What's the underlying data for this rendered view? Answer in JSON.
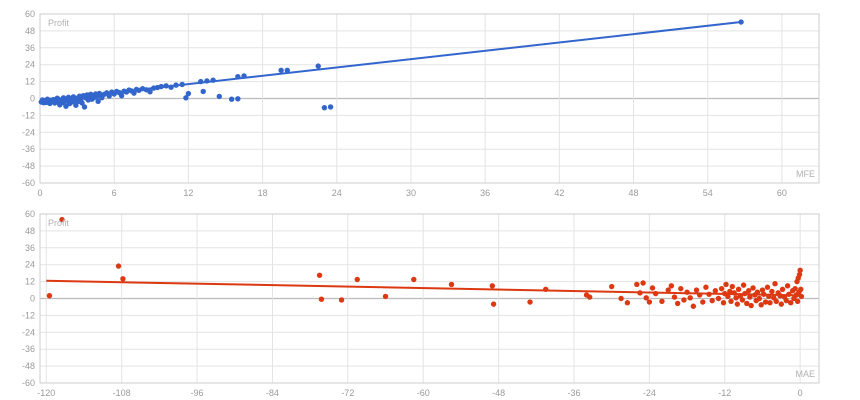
{
  "chart_data": [
    {
      "type": "scatter",
      "ylabel": "Profit",
      "xlabel": "MFE",
      "xlim": [
        0,
        63
      ],
      "ylim": [
        -60,
        60
      ],
      "xticks": [
        "0",
        "6",
        "12",
        "18",
        "24",
        "30",
        "36",
        "42",
        "48",
        "54",
        "60"
      ],
      "yticks": [
        "60",
        "48",
        "36",
        "24",
        "12",
        "0",
        "-12",
        "-24",
        "-36",
        "-48",
        "-60"
      ],
      "grid": true,
      "color": "#3366cc",
      "trendline": {
        "x": [
          0,
          56.7
        ],
        "y": [
          -1.6,
          54.3
        ]
      },
      "points": [
        [
          0.1,
          -2.5
        ],
        [
          0.2,
          -1.0
        ],
        [
          0.3,
          -3.0
        ],
        [
          0.4,
          -1.5
        ],
        [
          0.5,
          -2.8
        ],
        [
          0.6,
          -0.5
        ],
        [
          0.7,
          -2.0
        ],
        [
          0.8,
          -3.5
        ],
        [
          0.9,
          -1.2
        ],
        [
          1.0,
          -2.2
        ],
        [
          1.1,
          -0.8
        ],
        [
          1.2,
          -3.2
        ],
        [
          1.3,
          -1.8
        ],
        [
          1.4,
          0.2
        ],
        [
          1.5,
          -2.6
        ],
        [
          1.6,
          -4.5
        ],
        [
          1.7,
          -1.0
        ],
        [
          1.8,
          -3.0
        ],
        [
          1.9,
          0.5
        ],
        [
          2.0,
          -2.0
        ],
        [
          2.1,
          -5.5
        ],
        [
          2.2,
          -1.5
        ],
        [
          2.3,
          0.8
        ],
        [
          2.4,
          -3.6
        ],
        [
          2.5,
          -0.5
        ],
        [
          2.6,
          -2.4
        ],
        [
          2.7,
          1.2
        ],
        [
          2.8,
          -1.2
        ],
        [
          2.9,
          -4.8
        ],
        [
          3.0,
          0.0
        ],
        [
          3.1,
          -2.0
        ],
        [
          3.2,
          1.6
        ],
        [
          3.3,
          -0.8
        ],
        [
          3.4,
          -3.2
        ],
        [
          3.5,
          2.0
        ],
        [
          3.6,
          -6.0
        ],
        [
          3.7,
          0.5
        ],
        [
          3.8,
          2.5
        ],
        [
          3.9,
          -1.0
        ],
        [
          4.0,
          1.0
        ],
        [
          4.1,
          3.0
        ],
        [
          4.2,
          -0.5
        ],
        [
          4.3,
          2.0
        ],
        [
          4.4,
          0.8
        ],
        [
          4.5,
          3.2
        ],
        [
          4.6,
          1.5
        ],
        [
          4.7,
          -2.0
        ],
        [
          4.8,
          3.6
        ],
        [
          4.9,
          2.2
        ],
        [
          5.0,
          0.6
        ],
        [
          5.2,
          3.0
        ],
        [
          5.4,
          4.0
        ],
        [
          5.6,
          1.8
        ],
        [
          5.8,
          4.6
        ],
        [
          6.0,
          3.2
        ],
        [
          6.2,
          5.0
        ],
        [
          6.4,
          4.2
        ],
        [
          6.6,
          2.0
        ],
        [
          6.8,
          5.2
        ],
        [
          7.0,
          4.6
        ],
        [
          7.2,
          6.0
        ],
        [
          7.4,
          5.4
        ],
        [
          7.6,
          3.8
        ],
        [
          7.8,
          6.4
        ],
        [
          8.0,
          5.8
        ],
        [
          8.3,
          7.0
        ],
        [
          8.6,
          6.2
        ],
        [
          8.9,
          4.8
        ],
        [
          9.2,
          7.4
        ],
        [
          9.5,
          7.8
        ],
        [
          9.8,
          8.5
        ],
        [
          10.2,
          9.0
        ],
        [
          10.6,
          8.0
        ],
        [
          11.0,
          9.5
        ],
        [
          11.5,
          10.0
        ],
        [
          12.0,
          3.5
        ],
        [
          11.8,
          0.5
        ],
        [
          13.0,
          12.0
        ],
        [
          13.5,
          12.5
        ],
        [
          13.2,
          5.0
        ],
        [
          14.0,
          13.0
        ],
        [
          14.5,
          1.5
        ],
        [
          15.5,
          -0.5
        ],
        [
          16.0,
          -0.2
        ],
        [
          16.0,
          15.5
        ],
        [
          16.5,
          16.0
        ],
        [
          19.5,
          20.0
        ],
        [
          20.0,
          20.0
        ],
        [
          22.5,
          23.0
        ],
        [
          23.0,
          -6.5
        ],
        [
          23.5,
          -6.0
        ],
        [
          56.7,
          54.3
        ]
      ]
    },
    {
      "type": "scatter",
      "ylabel": "Profit",
      "xlabel": "MAE",
      "xlim": [
        -121,
        3
      ],
      "ylim": [
        -60,
        60
      ],
      "xticks": [
        "-120",
        "-108",
        "-96",
        "-84",
        "-72",
        "-60",
        "-48",
        "-36",
        "-24",
        "-12",
        "0"
      ],
      "yticks": [
        "60",
        "48",
        "36",
        "24",
        "12",
        "0",
        "-12",
        "-24",
        "-36",
        "-48",
        "-60"
      ],
      "grid": true,
      "color": "#dc3912",
      "trendline": {
        "x": [
          -120,
          0
        ],
        "y": [
          12.6,
          2.2
        ]
      },
      "points": [
        [
          -117.5,
          56.0
        ],
        [
          -119.5,
          2.0
        ],
        [
          -108.5,
          23.0
        ],
        [
          -107.8,
          14.0
        ],
        [
          -76.5,
          16.5
        ],
        [
          -76.2,
          -0.5
        ],
        [
          -73.0,
          -1.0
        ],
        [
          -70.5,
          13.5
        ],
        [
          -66.0,
          1.5
        ],
        [
          -61.5,
          13.5
        ],
        [
          -55.5,
          10.0
        ],
        [
          -49.0,
          9.0
        ],
        [
          -48.8,
          -4.0
        ],
        [
          -43.0,
          -2.5
        ],
        [
          -40.5,
          6.5
        ],
        [
          -34.0,
          2.5
        ],
        [
          -33.5,
          1.0
        ],
        [
          -30.0,
          8.5
        ],
        [
          -28.5,
          0.0
        ],
        [
          -27.5,
          -3.0
        ],
        [
          -26.0,
          10.0
        ],
        [
          -25.5,
          4.0
        ],
        [
          -25.0,
          11.0
        ],
        [
          -24.5,
          0.5
        ],
        [
          -24.0,
          -2.5
        ],
        [
          -23.5,
          7.5
        ],
        [
          -23.0,
          3.5
        ],
        [
          -22.0,
          -2.0
        ],
        [
          -21.0,
          6.0
        ],
        [
          -20.5,
          9.0
        ],
        [
          -20.0,
          1.0
        ],
        [
          -19.5,
          -3.5
        ],
        [
          -19.0,
          7.0
        ],
        [
          -18.5,
          -1.0
        ],
        [
          -18.0,
          4.5
        ],
        [
          -17.5,
          0.5
        ],
        [
          -17.0,
          -5.5
        ],
        [
          -16.5,
          6.0
        ],
        [
          -16.0,
          2.5
        ],
        [
          -15.5,
          -2.5
        ],
        [
          -15.0,
          8.0
        ],
        [
          -14.5,
          3.0
        ],
        [
          -14.0,
          -1.5
        ],
        [
          -13.5,
          5.5
        ],
        [
          -13.0,
          0.0
        ],
        [
          -12.5,
          7.0
        ],
        [
          -12.2,
          -3.0
        ],
        [
          -12.0,
          3.5
        ],
        [
          -11.8,
          10.0
        ],
        [
          -11.5,
          1.5
        ],
        [
          -11.2,
          5.0
        ],
        [
          -11.0,
          -2.0
        ],
        [
          -10.8,
          8.5
        ],
        [
          -10.5,
          4.0
        ],
        [
          -10.2,
          0.5
        ],
        [
          -10.0,
          -4.0
        ],
        [
          -9.8,
          6.5
        ],
        [
          -9.5,
          2.0
        ],
        [
          -9.2,
          -1.0
        ],
        [
          -9.0,
          9.5
        ],
        [
          -8.8,
          3.5
        ],
        [
          -8.5,
          -3.5
        ],
        [
          -8.2,
          5.5
        ],
        [
          -8.0,
          1.0
        ],
        [
          -7.8,
          -5.0
        ],
        [
          -7.5,
          7.5
        ],
        [
          -7.2,
          2.5
        ],
        [
          -7.0,
          -1.5
        ],
        [
          -6.8,
          4.5
        ],
        [
          -6.5,
          0.0
        ],
        [
          -6.2,
          -4.5
        ],
        [
          -6.0,
          6.0
        ],
        [
          -5.8,
          3.0
        ],
        [
          -5.5,
          -2.5
        ],
        [
          -5.2,
          8.0
        ],
        [
          -5.0,
          1.5
        ],
        [
          -4.8,
          -3.0
        ],
        [
          -4.5,
          5.0
        ],
        [
          -4.2,
          0.5
        ],
        [
          -4.0,
          10.5
        ],
        [
          -3.8,
          -2.0
        ],
        [
          -3.5,
          4.0
        ],
        [
          -3.2,
          2.0
        ],
        [
          -3.0,
          -4.0
        ],
        [
          -2.8,
          6.5
        ],
        [
          -2.5,
          1.0
        ],
        [
          -2.2,
          -1.5
        ],
        [
          -2.0,
          9.0
        ],
        [
          -1.8,
          3.0
        ],
        [
          -1.5,
          -3.0
        ],
        [
          -1.2,
          5.5
        ],
        [
          -1.0,
          0.0
        ],
        [
          -0.8,
          7.0
        ],
        [
          -0.6,
          2.5
        ],
        [
          -0.5,
          12.0
        ],
        [
          -0.4,
          -2.0
        ],
        [
          -0.3,
          14.5
        ],
        [
          -0.2,
          4.5
        ],
        [
          -0.1,
          17.0
        ],
        [
          0.0,
          20.0
        ],
        [
          0.1,
          6.5
        ],
        [
          0.2,
          1.5
        ]
      ]
    }
  ]
}
